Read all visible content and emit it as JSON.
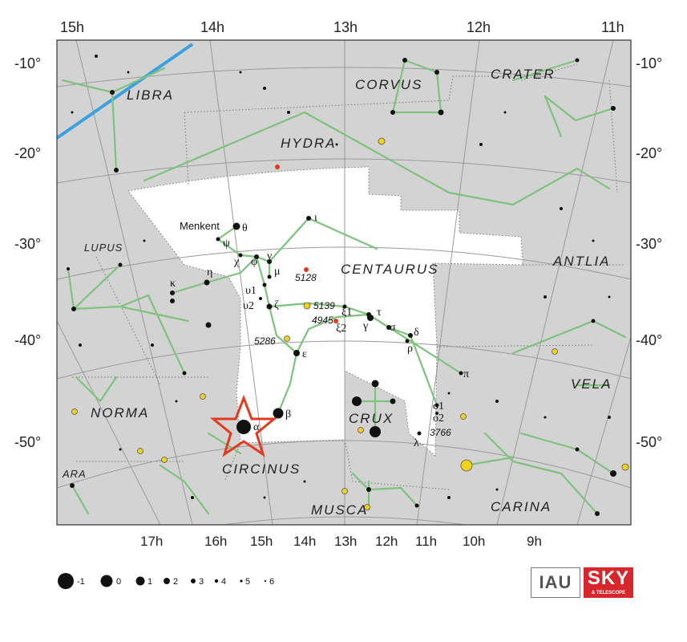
{
  "map": {
    "title": "Centaurus",
    "ra_top": [
      "15h",
      "14h",
      "13h",
      "12h",
      "11h"
    ],
    "ra_bottom": [
      "17h",
      "16h",
      "15h",
      "14h",
      "13h",
      "12h",
      "11h",
      "10h",
      "9h"
    ],
    "dec_left": [
      "-10°",
      "-20°",
      "-30°",
      "-40°",
      "-50°"
    ],
    "dec_right": [
      "-10°",
      "-20°",
      "-30°",
      "-40°",
      "-50°"
    ],
    "constellations": [
      "LIBRA",
      "CORVUS",
      "CRATER",
      "HYDRA",
      "LUPUS",
      "CENTAURUS",
      "ANTLIA",
      "NORMA",
      "CRUX",
      "VELA",
      "ARA",
      "CIRCINUS",
      "MUSCA",
      "CARINA"
    ],
    "star_labels": [
      "θ",
      "ι",
      "ψ",
      "χ",
      "φ",
      "ν",
      "μ",
      "η",
      "κ",
      "υ1",
      "υ2",
      "ζ",
      "ξ1",
      "ξ2",
      "τ",
      "γ",
      "σ",
      "δ",
      "ρ",
      "ε",
      "π",
      "β",
      "α",
      "ο1",
      "ο2",
      "λ"
    ],
    "named_stars": [
      "Menkent"
    ],
    "deep_sky": [
      "5128",
      "5139",
      "4945",
      "5286",
      "3766"
    ],
    "highlight": "α Centauri",
    "colors": {
      "background": "#d3d3d3",
      "constellation_area": "#ffffff",
      "stick_lines": "#7ec27e",
      "ecliptic": "#3aa0e0",
      "highlight": "#e23a20"
    }
  },
  "legend": {
    "magnitudes": [
      "-1",
      "0",
      "1",
      "2",
      "3",
      "4",
      "5",
      "6"
    ]
  },
  "logos": {
    "iau": "IAU",
    "snt_big": "SKY",
    "snt_small": "& TELESCOPE"
  }
}
